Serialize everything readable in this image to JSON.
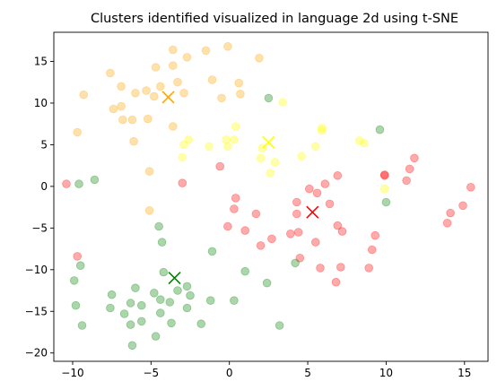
{
  "chart_data": {
    "type": "scatter",
    "title": "Clusters identified visualized in language 2d using t-SNE",
    "xlabel": "",
    "ylabel": "",
    "xlim": [
      -11.2,
      16.5
    ],
    "ylim": [
      -21,
      18.5
    ],
    "xticks": [
      -10,
      -5,
      0,
      5,
      10,
      15
    ],
    "yticks": [
      -20,
      -15,
      -10,
      -5,
      0,
      5,
      10,
      15
    ],
    "grid": false,
    "legend": "none",
    "series": [
      {
        "color": "#ffa500",
        "points": [
          [
            -3.6,
            16.4
          ],
          [
            -1.5,
            16.3
          ],
          [
            -0.1,
            16.8
          ],
          [
            -2.7,
            15.5
          ],
          [
            1.9,
            15.4
          ],
          [
            -4.7,
            14.3
          ],
          [
            -3.6,
            14.5
          ],
          [
            -7.6,
            13.6
          ],
          [
            -1.1,
            12.8
          ],
          [
            0.6,
            12.4
          ],
          [
            -6.9,
            12.0
          ],
          [
            -4.4,
            12.0
          ],
          [
            -3.3,
            12.5
          ],
          [
            -2.9,
            11.2
          ],
          [
            -5.3,
            11.5
          ],
          [
            -6.0,
            11.2
          ],
          [
            -9.3,
            11.0
          ],
          [
            -4.8,
            10.8
          ],
          [
            -0.5,
            10.6
          ],
          [
            0.7,
            11.1
          ],
          [
            -6.9,
            9.6
          ],
          [
            -7.4,
            9.3
          ],
          [
            -6.2,
            8.0
          ],
          [
            -6.8,
            8.0
          ],
          [
            -5.2,
            8.1
          ],
          [
            -3.6,
            7.2
          ],
          [
            -9.7,
            6.5
          ],
          [
            -6.1,
            5.4
          ],
          [
            -5.1,
            1.8
          ],
          [
            -5.1,
            -2.9
          ]
        ],
        "centroid": [
          -3.9,
          10.7
        ]
      },
      {
        "color": "#ffff00",
        "points": [
          [
            3.4,
            10.1
          ],
          [
            0.4,
            7.2
          ],
          [
            5.9,
            7.0
          ],
          [
            -2.6,
            5.6
          ],
          [
            0.3,
            5.6
          ],
          [
            -2.9,
            5.0
          ],
          [
            -1.3,
            4.8
          ],
          [
            -0.1,
            4.8
          ],
          [
            2.1,
            4.6
          ],
          [
            5.5,
            4.8
          ],
          [
            -3.0,
            3.5
          ],
          [
            2.0,
            3.4
          ],
          [
            4.6,
            3.6
          ],
          [
            8.3,
            5.5
          ],
          [
            8.6,
            5.2
          ],
          [
            2.9,
            2.9
          ],
          [
            2.6,
            1.6
          ],
          [
            9.9,
            -0.3
          ],
          [
            5.9,
            6.7
          ],
          [
            -0.2,
            5.6
          ]
        ],
        "centroid": [
          2.5,
          5.3
        ]
      },
      {
        "color": "#ff0000",
        "points": [
          [
            -10.4,
            0.3
          ],
          [
            -3.0,
            0.4
          ],
          [
            -0.6,
            2.4
          ],
          [
            0.4,
            -1.4
          ],
          [
            0.3,
            -2.7
          ],
          [
            -0.1,
            -4.8
          ],
          [
            1.0,
            -5.3
          ],
          [
            1.7,
            -3.3
          ],
          [
            2.7,
            -6.3
          ],
          [
            2.0,
            -7.1
          ],
          [
            3.9,
            -5.7
          ],
          [
            4.4,
            -5.5
          ],
          [
            4.3,
            -3.3
          ],
          [
            4.3,
            -1.9
          ],
          [
            5.1,
            -0.3
          ],
          [
            5.6,
            -0.8
          ],
          [
            6.1,
            0.3
          ],
          [
            6.9,
            1.3
          ],
          [
            6.4,
            -2.1
          ],
          [
            6.9,
            -4.7
          ],
          [
            7.2,
            -5.4
          ],
          [
            5.5,
            -6.7
          ],
          [
            5.8,
            -9.8
          ],
          [
            7.1,
            -9.7
          ],
          [
            6.8,
            -11.5
          ],
          [
            9.1,
            -7.6
          ],
          [
            8.9,
            -9.8
          ],
          [
            9.3,
            -5.9
          ],
          [
            9.9,
            1.3
          ],
          [
            9.9,
            1.4
          ],
          [
            11.3,
            0.7
          ],
          [
            11.5,
            2.1
          ],
          [
            11.8,
            3.4
          ],
          [
            14.1,
            -3.2
          ],
          [
            13.9,
            -4.4
          ],
          [
            14.9,
            -2.3
          ],
          [
            15.4,
            -0.1
          ],
          [
            -9.7,
            -8.4
          ],
          [
            4.5,
            -8.6
          ]
        ],
        "centroid": [
          5.3,
          -3.1
        ]
      },
      {
        "color": "#008000",
        "points": [
          [
            -9.6,
            0.3
          ],
          [
            -8.6,
            0.8
          ],
          [
            2.5,
            10.6
          ],
          [
            9.6,
            6.8
          ],
          [
            10.0,
            -1.9
          ],
          [
            -4.5,
            -4.8
          ],
          [
            -4.3,
            -6.7
          ],
          [
            -1.1,
            -7.8
          ],
          [
            -9.5,
            -9.5
          ],
          [
            -9.9,
            -11.3
          ],
          [
            -4.2,
            -10.3
          ],
          [
            -3.3,
            -12.5
          ],
          [
            -2.7,
            -12.0
          ],
          [
            -2.5,
            -13.1
          ],
          [
            -4.8,
            -12.8
          ],
          [
            -6.0,
            -12.2
          ],
          [
            -7.5,
            -13.0
          ],
          [
            -6.3,
            -14.0
          ],
          [
            -5.6,
            -14.3
          ],
          [
            -4.4,
            -13.6
          ],
          [
            -3.8,
            -13.9
          ],
          [
            -2.7,
            -14.6
          ],
          [
            -1.2,
            -13.7
          ],
          [
            0.3,
            -13.7
          ],
          [
            -9.8,
            -14.3
          ],
          [
            -7.6,
            -14.6
          ],
          [
            -6.7,
            -15.3
          ],
          [
            -5.6,
            -16.2
          ],
          [
            -6.3,
            -16.6
          ],
          [
            -4.4,
            -15.2
          ],
          [
            -3.7,
            -16.4
          ],
          [
            -1.8,
            -16.5
          ],
          [
            -9.4,
            -16.7
          ],
          [
            -6.2,
            -19.1
          ],
          [
            -4.7,
            -18.0
          ],
          [
            1.0,
            -10.2
          ],
          [
            2.4,
            -11.6
          ],
          [
            3.2,
            -16.7
          ],
          [
            4.2,
            -9.2
          ]
        ],
        "centroid": [
          -3.5,
          -11.0
        ]
      }
    ]
  }
}
